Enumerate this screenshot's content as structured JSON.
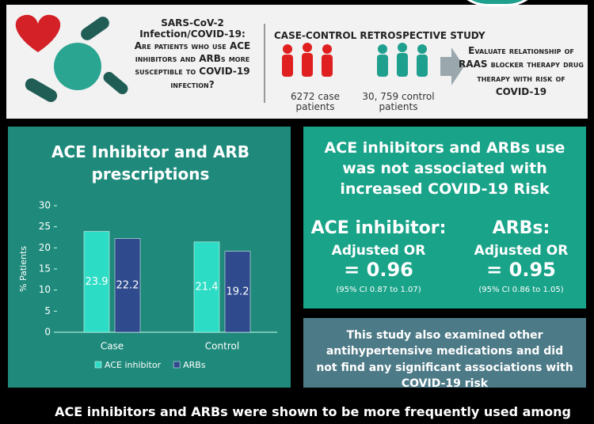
{
  "header": {
    "question_title": "SARS-CoV-2 Infection/COVID-19:",
    "question": "Are patients who use ACE inhibitors and ARBs more susceptible to COVID-19 infection?",
    "study_title": "CASE-CONTROL RETROSPECTIVE STUDY",
    "cases": "6272 case patients",
    "controls": "30, 759 control patients",
    "aim": "Evaluate relationship of RAAS blocker therapy drug therapy with risk of COVID-19"
  },
  "chart_data": {
    "type": "bar",
    "title": "ACE Inhibitor and ARB prescriptions",
    "y_label": "% Patients",
    "categories": [
      "Case",
      "Control"
    ],
    "series": [
      {
        "name": "ACE inhibitor",
        "color": "#2ddcc4",
        "values": [
          23.9,
          21.4
        ]
      },
      {
        "name": "ARBs",
        "color": "#2f4b8e",
        "values": [
          22.2,
          19.2
        ]
      }
    ],
    "ylim": [
      0,
      30
    ],
    "yticks": [
      0,
      5,
      10,
      15,
      20,
      25,
      30
    ],
    "grid": false,
    "legend": "bottom"
  },
  "results": {
    "headline": "ACE inhibitors and ARBs use was not associated with increased COVID-19 Risk",
    "columns": [
      {
        "drug": "ACE inhibitor:",
        "measure": "Adjusted OR",
        "value": "= 0.96",
        "ci": "(95% CI 0.87 to 1.07)"
      },
      {
        "drug": "ARBs:",
        "measure": "Adjusted OR",
        "value": "= 0.95",
        "ci": "(95% CI 0.86 to 1.05)"
      }
    ]
  },
  "note": "This study also examined other antihypertensive medications and did not find any significant associations with COVID-19 risk",
  "footer": "ACE inhibitors and ARBs were shown to be more frequently used among"
}
